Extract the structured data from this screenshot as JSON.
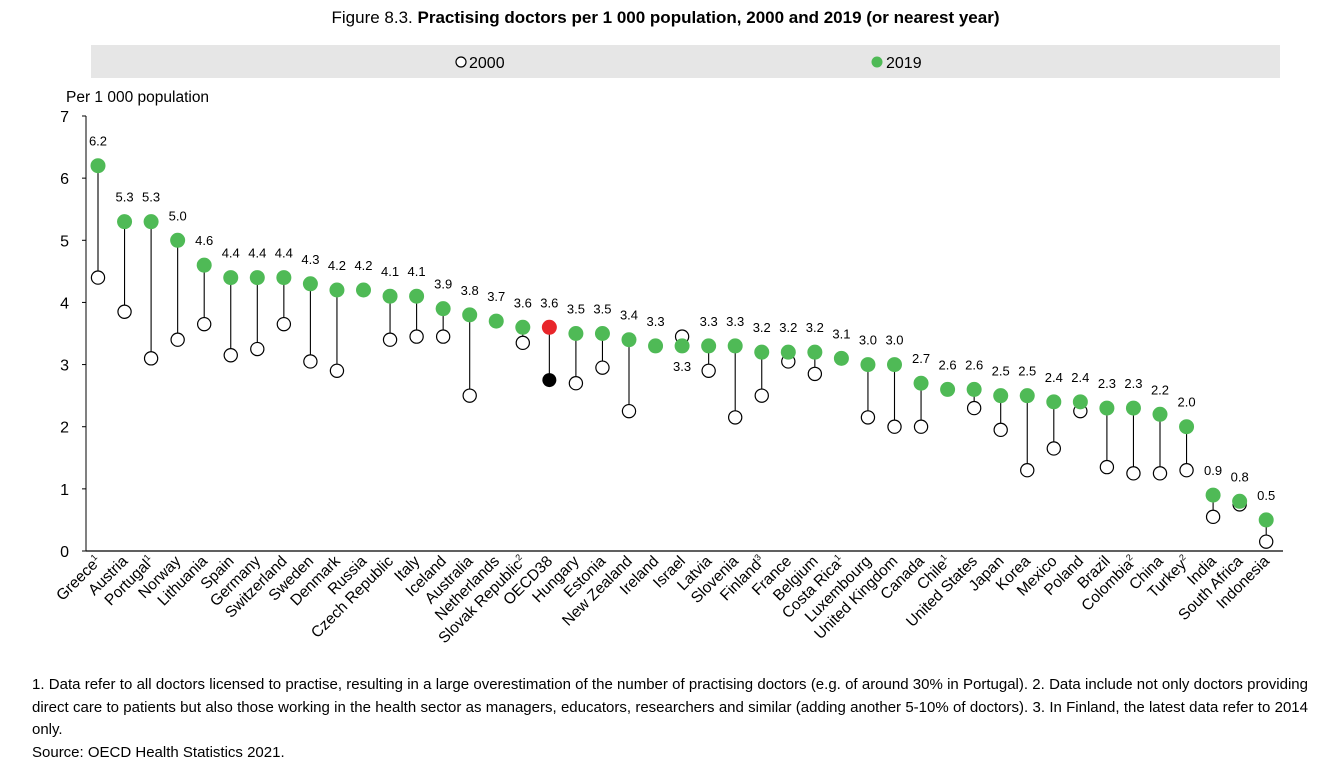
{
  "title": {
    "prefix": "Figure 8.3. ",
    "main": "Practising doctors per 1 000 population, 2000 and 2019 (or nearest year)"
  },
  "legend": {
    "items": [
      {
        "label": "2000",
        "marker": "open-circle"
      },
      {
        "label": "2019",
        "marker": "filled-circle"
      }
    ]
  },
  "colors": {
    "series_2019": "#4FBA56",
    "series_2000_fill": "#FFFFFF",
    "oecd_2019": "#E8262B",
    "oecd_2000": "#000000",
    "legend_bg": "#E6E6E6",
    "stem": "#000000"
  },
  "chart_data": {
    "type": "scatter",
    "subtype": "dot-plot",
    "ylabel": "Per 1 000 population",
    "ylim": [
      0,
      7
    ],
    "yticks": [
      0,
      1,
      2,
      3,
      4,
      5,
      6,
      7
    ],
    "grid": false,
    "categories": [
      {
        "name": "Greece",
        "sup": "1",
        "v2019": 6.2,
        "v2000": 4.4,
        "label": "6.2"
      },
      {
        "name": "Austria",
        "sup": "",
        "v2019": 5.3,
        "v2000": 3.85,
        "label": "5.3"
      },
      {
        "name": "Portugal",
        "sup": "1",
        "v2019": 5.3,
        "v2000": 3.1,
        "label": "5.3"
      },
      {
        "name": "Norway",
        "sup": "",
        "v2019": 5.0,
        "v2000": 3.4,
        "label": "5.0"
      },
      {
        "name": "Lithuania",
        "sup": "",
        "v2019": 4.6,
        "v2000": 3.65,
        "label": "4.6"
      },
      {
        "name": "Spain",
        "sup": "",
        "v2019": 4.4,
        "v2000": 3.15,
        "label": "4.4"
      },
      {
        "name": "Germany",
        "sup": "",
        "v2019": 4.4,
        "v2000": 3.25,
        "label": "4.4"
      },
      {
        "name": "Switzerland",
        "sup": "",
        "v2019": 4.4,
        "v2000": 3.65,
        "label": "4.4"
      },
      {
        "name": "Sweden",
        "sup": "",
        "v2019": 4.3,
        "v2000": 3.05,
        "label": "4.3"
      },
      {
        "name": "Denmark",
        "sup": "",
        "v2019": 4.2,
        "v2000": 2.9,
        "label": "4.2"
      },
      {
        "name": "Russia",
        "sup": "",
        "v2019": 4.2,
        "v2000": null,
        "label": "4.2"
      },
      {
        "name": "Czech Republic",
        "sup": "",
        "v2019": 4.1,
        "v2000": 3.4,
        "label": "4.1"
      },
      {
        "name": "Italy",
        "sup": "",
        "v2019": 4.1,
        "v2000": 3.45,
        "label": "4.1"
      },
      {
        "name": "Iceland",
        "sup": "",
        "v2019": 3.9,
        "v2000": 3.45,
        "label": "3.9"
      },
      {
        "name": "Australia",
        "sup": "",
        "v2019": 3.8,
        "v2000": 2.5,
        "label": "3.8"
      },
      {
        "name": "Netherlands",
        "sup": "",
        "v2019": 3.7,
        "v2000": null,
        "label": "3.7"
      },
      {
        "name": "Slovak Republic",
        "sup": "2",
        "v2019": 3.6,
        "v2000": 3.35,
        "label": "3.6"
      },
      {
        "name": "OECD38",
        "sup": "",
        "v2019": 3.6,
        "v2000": 2.75,
        "label": "3.6",
        "highlight": true
      },
      {
        "name": "Hungary",
        "sup": "",
        "v2019": 3.5,
        "v2000": 2.7,
        "label": "3.5"
      },
      {
        "name": "Estonia",
        "sup": "",
        "v2019": 3.5,
        "v2000": 2.95,
        "label": "3.5"
      },
      {
        "name": "New Zealand",
        "sup": "",
        "v2019": 3.4,
        "v2000": 2.25,
        "label": "3.4"
      },
      {
        "name": "Ireland",
        "sup": "",
        "v2019": 3.3,
        "v2000": null,
        "label": "3.3"
      },
      {
        "name": "Israel",
        "sup": "",
        "v2019": 3.3,
        "v2000": 3.45,
        "label": "3.3",
        "label_below": true
      },
      {
        "name": "Latvia",
        "sup": "",
        "v2019": 3.3,
        "v2000": 2.9,
        "label": "3.3"
      },
      {
        "name": "Slovenia",
        "sup": "",
        "v2019": 3.3,
        "v2000": 2.15,
        "label": "3.3"
      },
      {
        "name": "Finland",
        "sup": "3",
        "v2019": 3.2,
        "v2000": 2.5,
        "label": "3.2"
      },
      {
        "name": "France",
        "sup": "",
        "v2019": 3.2,
        "v2000": 3.05,
        "label": "3.2"
      },
      {
        "name": "Belgium",
        "sup": "",
        "v2019": 3.2,
        "v2000": 2.85,
        "label": "3.2"
      },
      {
        "name": "Costa Rica",
        "sup": "1",
        "v2019": 3.1,
        "v2000": null,
        "label": "3.1"
      },
      {
        "name": "Luxembourg",
        "sup": "",
        "v2019": 3.0,
        "v2000": 2.15,
        "label": "3.0"
      },
      {
        "name": "United Kingdom",
        "sup": "",
        "v2019": 3.0,
        "v2000": 2.0,
        "label": "3.0"
      },
      {
        "name": "Canada",
        "sup": "",
        "v2019": 2.7,
        "v2000": 2.0,
        "label": "2.7"
      },
      {
        "name": "Chile",
        "sup": "1",
        "v2019": 2.6,
        "v2000": null,
        "label": "2.6"
      },
      {
        "name": "United States",
        "sup": "",
        "v2019": 2.6,
        "v2000": 2.3,
        "label": "2.6"
      },
      {
        "name": "Japan",
        "sup": "",
        "v2019": 2.5,
        "v2000": 1.95,
        "label": "2.5"
      },
      {
        "name": "Korea",
        "sup": "",
        "v2019": 2.5,
        "v2000": 1.3,
        "label": "2.5"
      },
      {
        "name": "Mexico",
        "sup": "",
        "v2019": 2.4,
        "v2000": 1.65,
        "label": "2.4"
      },
      {
        "name": "Poland",
        "sup": "",
        "v2019": 2.4,
        "v2000": 2.25,
        "label": "2.4"
      },
      {
        "name": "Brazil",
        "sup": "",
        "v2019": 2.3,
        "v2000": 1.35,
        "label": "2.3"
      },
      {
        "name": "Colombia",
        "sup": "2",
        "v2019": 2.3,
        "v2000": 1.25,
        "label": "2.3"
      },
      {
        "name": "China",
        "sup": "",
        "v2019": 2.2,
        "v2000": 1.25,
        "label": "2.2"
      },
      {
        "name": "Turkey",
        "sup": "2",
        "v2019": 2.0,
        "v2000": 1.3,
        "label": "2.0"
      },
      {
        "name": "India",
        "sup": "",
        "v2019": 0.9,
        "v2000": 0.55,
        "label": "0.9"
      },
      {
        "name": "South Africa",
        "sup": "",
        "v2019": 0.8,
        "v2000": 0.75,
        "label": "0.8"
      },
      {
        "name": "Indonesia",
        "sup": "",
        "v2019": 0.5,
        "v2000": 0.15,
        "label": "0.5"
      }
    ]
  },
  "notes": {
    "line1": "1. Data refer to all doctors licensed to practise, resulting in a large overestimation of the number of practising doctors (e.g. of around 30% in Portugal). 2. Data include not only doctors providing direct care to patients but also those working in the health sector as managers, educators, researchers and similar (adding another 5-10% of doctors). 3. In Finland, the latest data refer to 2014 only.",
    "source": "Source: OECD Health Statistics 2021."
  }
}
